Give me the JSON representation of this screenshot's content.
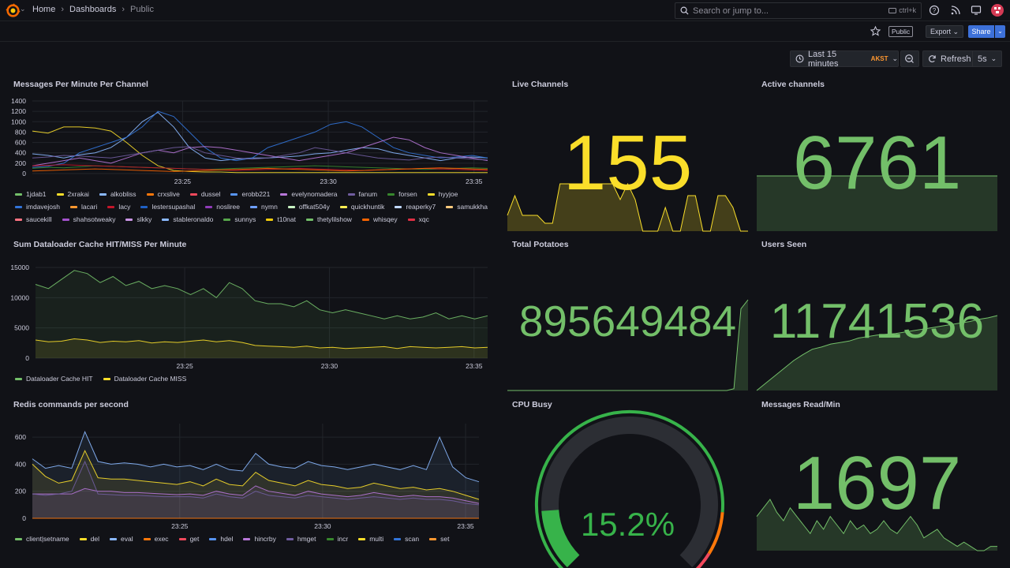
{
  "nav": {
    "crumbs": [
      "Home",
      "Dashboards",
      "Public"
    ],
    "search_placeholder": "Search or jump to...",
    "search_shortcut": "ctrl+k"
  },
  "toolbar": {
    "public_badge": "Public",
    "export_label": "Export",
    "share_label": "Share",
    "time_range": "Last 15 minutes",
    "timezone": "AKST",
    "refresh_label": "Refresh",
    "refresh_interval": "5s"
  },
  "colors": {
    "green": "#73bf69",
    "yellow": "#fade2a",
    "gauge_green": "#37b34a",
    "orange": "#ff780a",
    "red": "#f2495c"
  },
  "panels": {
    "messages": {
      "title": "Messages Per Minute Per Channel",
      "legend": [
        {
          "name": "1jdab1",
          "color": "#73bf69"
        },
        {
          "name": "2xrakai",
          "color": "#fade2a"
        },
        {
          "name": "alkobliss",
          "color": "#8ab8ff"
        },
        {
          "name": "crxslive",
          "color": "#ff780a"
        },
        {
          "name": "dussel",
          "color": "#f2495c"
        },
        {
          "name": "erobb221",
          "color": "#5794f2"
        },
        {
          "name": "evelynomadera",
          "color": "#b877d9"
        },
        {
          "name": "fanum",
          "color": "#705da0"
        },
        {
          "name": "forsen",
          "color": "#37872d"
        },
        {
          "name": "hyyjoe",
          "color": "#fade2a"
        },
        {
          "name": "imdavejosh",
          "color": "#3274d9"
        },
        {
          "name": "lacari",
          "color": "#ff9830"
        },
        {
          "name": "lacy",
          "color": "#c4162a"
        },
        {
          "name": "lestersupashal",
          "color": "#1f60c4"
        },
        {
          "name": "nosliree",
          "color": "#8f3bb8"
        },
        {
          "name": "nymn",
          "color": "#6e9fff"
        },
        {
          "name": "offkat504y",
          "color": "#c8f2c2"
        },
        {
          "name": "quickhuntik",
          "color": "#ffee52"
        },
        {
          "name": "reaperky7",
          "color": "#c0d8ff"
        },
        {
          "name": "samukkha",
          "color": "#ffcb7d"
        },
        {
          "name": "saucekill",
          "color": "#ff7383"
        },
        {
          "name": "shahsotweaky",
          "color": "#a352cc"
        },
        {
          "name": "slkky",
          "color": "#ca95e5"
        },
        {
          "name": "stableronaldo",
          "color": "#8ab8ff"
        },
        {
          "name": "sunnys",
          "color": "#56a64b"
        },
        {
          "name": "t10nat",
          "color": "#f2cc0c"
        },
        {
          "name": "thetylilshow",
          "color": "#73bf69"
        },
        {
          "name": "whisqey",
          "color": "#fa6400"
        },
        {
          "name": "xqc",
          "color": "#e02f44"
        }
      ]
    },
    "live_channels": {
      "title": "Live Channels",
      "value": "155"
    },
    "active_channels": {
      "title": "Active channels",
      "value": "6761"
    },
    "cache": {
      "title": "Sum Dataloader Cache HIT/MISS Per Minute",
      "legend": [
        {
          "name": "Dataloader Cache HIT",
          "color": "#73bf69"
        },
        {
          "name": "Dataloader Cache MISS",
          "color": "#fade2a"
        }
      ]
    },
    "total_potatoes": {
      "title": "Total Potatoes",
      "value": "895649484"
    },
    "users_seen": {
      "title": "Users Seen",
      "value": "11741536"
    },
    "redis": {
      "title": "Redis commands per second",
      "legend": [
        {
          "name": "client|setname",
          "color": "#73bf69"
        },
        {
          "name": "del",
          "color": "#fade2a"
        },
        {
          "name": "eval",
          "color": "#8ab8ff"
        },
        {
          "name": "exec",
          "color": "#ff780a"
        },
        {
          "name": "get",
          "color": "#f2495c"
        },
        {
          "name": "hdel",
          "color": "#5794f2"
        },
        {
          "name": "hincrby",
          "color": "#b877d9"
        },
        {
          "name": "hmget",
          "color": "#705da0"
        },
        {
          "name": "incr",
          "color": "#37872d"
        },
        {
          "name": "multi",
          "color": "#fade2a"
        },
        {
          "name": "scan",
          "color": "#3274d9"
        },
        {
          "name": "set",
          "color": "#ff9830"
        }
      ]
    },
    "cpu_busy": {
      "title": "CPU Busy",
      "value": "15.2%",
      "fraction": 0.152
    },
    "messages_read": {
      "title": "Messages Read/Min",
      "value": "1697"
    }
  },
  "chart_data": [
    {
      "type": "line",
      "name": "messages_per_minute",
      "x_ticks": [
        "23:25",
        "23:30",
        "23:35"
      ],
      "y_ticks": [
        0,
        200,
        400,
        600,
        800,
        1000,
        1200,
        1400
      ],
      "ylim": [
        0,
        1400
      ],
      "series": [
        {
          "name": "2xrakai",
          "color": "#fade2a",
          "values": [
            820,
            780,
            900,
            900,
            880,
            820,
            600,
            350,
            150,
            60,
            40,
            30,
            30,
            20,
            20,
            20,
            20,
            20,
            20,
            20,
            20,
            20,
            20,
            20,
            20,
            20,
            20,
            20,
            20,
            20
          ]
        },
        {
          "name": "alkobliss",
          "color": "#8ab8ff",
          "values": [
            380,
            350,
            300,
            360,
            400,
            500,
            700,
            1000,
            1180,
            900,
            500,
            300,
            250,
            280,
            300,
            300,
            320,
            340,
            380,
            400,
            450,
            500,
            480,
            400,
            350,
            300,
            250,
            300,
            320,
            300
          ]
        },
        {
          "name": "imdavejosh",
          "color": "#3274d9",
          "values": [
            120,
            140,
            200,
            400,
            500,
            600,
            700,
            900,
            1200,
            1100,
            800,
            500,
            300,
            250,
            300,
            500,
            600,
            700,
            800,
            950,
            1000,
            900,
            700,
            500,
            400,
            350,
            300,
            320,
            350,
            300
          ]
        },
        {
          "name": "evelynomadera",
          "color": "#b877d9",
          "values": [
            150,
            200,
            250,
            300,
            250,
            200,
            300,
            400,
            450,
            400,
            500,
            520,
            500,
            450,
            400,
            350,
            300,
            250,
            300,
            350,
            400,
            500,
            600,
            700,
            650,
            500,
            400,
            350,
            300,
            250
          ]
        },
        {
          "name": "fanum",
          "color": "#705da0",
          "values": [
            300,
            320,
            350,
            340,
            320,
            300,
            350,
            400,
            450,
            500,
            520,
            400,
            350,
            300,
            280,
            300,
            350,
            400,
            500,
            450,
            400,
            350,
            300,
            280,
            260,
            300,
            320,
            300,
            280,
            260
          ]
        },
        {
          "name": "forsen",
          "color": "#37872d",
          "values": [
            100,
            120,
            110,
            130,
            150,
            140,
            130,
            120,
            110,
            100,
            90,
            80,
            90,
            100,
            110,
            120,
            130,
            140,
            150,
            140,
            130,
            120,
            110,
            100,
            90,
            80,
            90,
            100,
            110,
            100
          ]
        },
        {
          "name": "lacy",
          "color": "#c4162a",
          "values": [
            150,
            160,
            170,
            160,
            150,
            140,
            130,
            120,
            110,
            100,
            90,
            80,
            70,
            60,
            70,
            80,
            90,
            100,
            90,
            80,
            70,
            60,
            70,
            80,
            90,
            100,
            90,
            80,
            70,
            60
          ]
        },
        {
          "name": "whisqey",
          "color": "#fa6400",
          "values": [
            50,
            60,
            70,
            80,
            90,
            80,
            70,
            60,
            50,
            40,
            50,
            60,
            70,
            80,
            90,
            100,
            90,
            80,
            70,
            60,
            50,
            60,
            70,
            80,
            90,
            100,
            110,
            100,
            90,
            80
          ]
        }
      ]
    },
    {
      "type": "line",
      "name": "dataloader_cache",
      "x_ticks": [
        "23:25",
        "23:30",
        "23:35"
      ],
      "y_ticks": [
        0,
        5000,
        10000,
        15000
      ],
      "ylim": [
        0,
        15000
      ],
      "series": [
        {
          "name": "Dataloader Cache HIT",
          "color": "#73bf69",
          "values": [
            12200,
            11500,
            13000,
            14500,
            14000,
            12500,
            13500,
            12000,
            12700,
            11500,
            12000,
            11500,
            10500,
            11500,
            10000,
            12500,
            11500,
            9500,
            9000,
            9000,
            8500,
            9500,
            8000,
            7500,
            8000,
            7500,
            7000,
            6500,
            7000,
            6500,
            6800,
            7500,
            6500,
            7000,
            6500,
            7000
          ]
        },
        {
          "name": "Dataloader Cache MISS",
          "color": "#fade2a",
          "values": [
            3000,
            2700,
            2800,
            3200,
            3000,
            2600,
            2800,
            2700,
            2900,
            2500,
            2700,
            2600,
            2800,
            3000,
            2700,
            2900,
            2600,
            2100,
            2000,
            1900,
            1800,
            2000,
            1700,
            1800,
            1600,
            1700,
            1800,
            1900,
            1600,
            1900,
            1800,
            1700,
            1800,
            1900,
            1700,
            1800
          ]
        }
      ]
    },
    {
      "type": "area",
      "name": "redis_commands",
      "x_ticks": [
        "23:25",
        "23:30",
        "23:35"
      ],
      "y_ticks": [
        0,
        200,
        400,
        600
      ],
      "ylim": [
        0,
        700
      ],
      "series": [
        {
          "name": "eval",
          "color": "#8ab8ff",
          "values": [
            440,
            370,
            390,
            370,
            640,
            420,
            400,
            410,
            400,
            380,
            400,
            380,
            390,
            360,
            400,
            360,
            350,
            480,
            400,
            380,
            370,
            420,
            390,
            380,
            360,
            380,
            400,
            380,
            360,
            390,
            360,
            600,
            380,
            300,
            270
          ]
        },
        {
          "name": "del",
          "color": "#fade2a",
          "values": [
            400,
            310,
            260,
            280,
            500,
            300,
            290,
            290,
            280,
            270,
            260,
            250,
            270,
            240,
            290,
            250,
            240,
            340,
            280,
            260,
            240,
            280,
            250,
            240,
            220,
            230,
            260,
            240,
            220,
            230,
            210,
            220,
            200,
            170,
            140
          ]
        },
        {
          "name": "hincrby",
          "color": "#b877d9",
          "values": [
            180,
            180,
            180,
            180,
            220,
            200,
            200,
            190,
            190,
            185,
            180,
            175,
            180,
            170,
            200,
            180,
            170,
            240,
            200,
            185,
            170,
            200,
            180,
            170,
            160,
            170,
            190,
            175,
            160,
            170,
            160,
            160,
            150,
            130,
            110
          ]
        },
        {
          "name": "hmget",
          "color": "#705da0",
          "values": [
            180,
            170,
            180,
            200,
            420,
            180,
            175,
            170,
            170,
            165,
            160,
            160,
            160,
            150,
            180,
            160,
            150,
            200,
            170,
            160,
            150,
            170,
            160,
            150,
            140,
            150,
            160,
            150,
            140,
            150,
            140,
            140,
            130,
            110,
            100
          ]
        },
        {
          "name": "exec",
          "color": "#ff780a",
          "values": [
            0,
            0,
            0,
            0,
            0,
            0,
            0,
            0,
            0,
            0,
            0,
            0,
            0,
            0,
            0,
            0,
            0,
            0,
            0,
            0,
            0,
            0,
            0,
            0,
            0,
            0,
            0,
            0,
            0,
            0,
            0,
            0,
            0,
            0,
            0
          ]
        }
      ]
    },
    {
      "type": "area",
      "name": "sparklines",
      "series": [
        {
          "name": "Live Channels",
          "color": "#fade2a",
          "values": [
            20,
            45,
            20,
            20,
            20,
            10,
            10,
            60,
            60,
            60,
            60,
            60,
            60,
            60,
            60,
            40,
            60,
            40,
            0,
            0,
            0,
            30,
            0,
            0,
            45,
            45,
            0,
            0,
            45,
            45,
            30,
            0,
            0
          ]
        },
        {
          "name": "Active channels",
          "color": "#73bf69",
          "values": [
            50,
            50,
            50,
            50,
            50,
            50,
            50,
            50,
            50,
            50
          ]
        },
        {
          "name": "Total Potatoes",
          "color": "#73bf69",
          "values": [
            0,
            0,
            0,
            0,
            0,
            0,
            0,
            0,
            0,
            0,
            0,
            0,
            0,
            0,
            0,
            0,
            0,
            0,
            0,
            0,
            0,
            0,
            0,
            0,
            0,
            0,
            0,
            0,
            0,
            0,
            0,
            0,
            2,
            90,
            100
          ]
        },
        {
          "name": "Users Seen",
          "color": "#73bf69",
          "values": [
            0,
            10,
            20,
            30,
            40,
            48,
            55,
            58,
            62,
            64,
            66,
            70,
            72,
            74,
            75,
            76,
            78,
            80,
            82,
            84,
            86,
            88,
            90,
            92,
            95,
            97,
            100
          ]
        },
        {
          "name": "Messages Read/Min",
          "color": "#73bf69",
          "values": [
            40,
            50,
            60,
            45,
            35,
            50,
            40,
            30,
            20,
            35,
            25,
            40,
            30,
            20,
            35,
            25,
            30,
            20,
            25,
            35,
            25,
            20,
            30,
            40,
            30,
            15,
            20,
            25,
            15,
            10,
            5,
            10,
            5,
            0,
            0,
            5,
            5
          ]
        }
      ]
    }
  ]
}
